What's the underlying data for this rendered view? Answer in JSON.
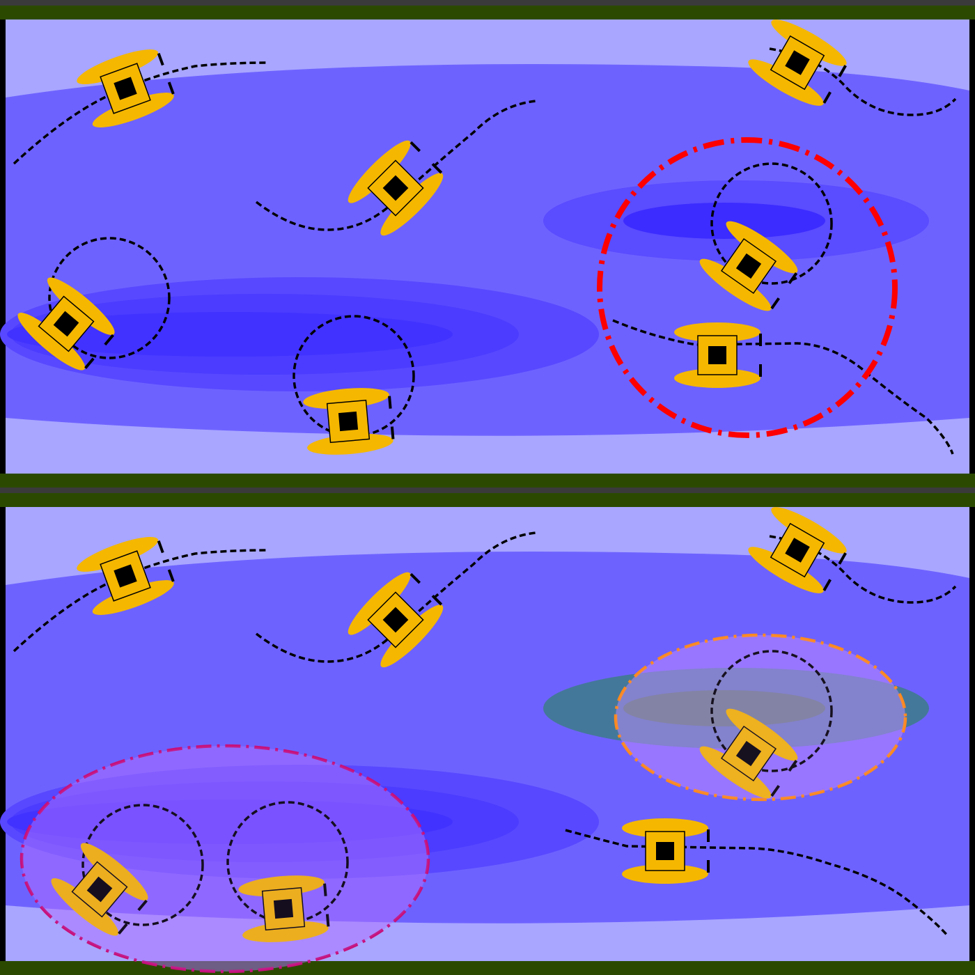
{
  "colors": {
    "background": "#000000",
    "bank_dark": "#3a3a3a",
    "bank_green": "#2b4a00",
    "water_light": "#a8a6ff",
    "water_mid": "#6e62ff",
    "water_deep": "#4b3dff",
    "water_deeper": "#3c2cff",
    "boat_body": "#f5b700",
    "boat_core": "#000000",
    "path": "#000000",
    "alert_red": "#ff0000",
    "cluster_orange": "#ff8a1a",
    "cluster_magenta": "#c7107a",
    "cluster_green_fill": "#3f7a3a",
    "cluster_purple_fill": "#c08cff"
  },
  "panels": [
    {
      "name": "top-panel",
      "boats": [
        {
          "id": "boat-top-left",
          "heading": -20,
          "trajectory": "curved"
        },
        {
          "id": "boat-mid-left",
          "heading": -45,
          "trajectory": "curved"
        },
        {
          "id": "boat-top-right",
          "heading": 30,
          "trajectory": "curved"
        },
        {
          "id": "boat-left-circling",
          "heading": 40,
          "trajectory": "circling"
        },
        {
          "id": "boat-center-circling",
          "heading": -5,
          "trajectory": "circling"
        },
        {
          "id": "boat-right-circling",
          "heading": 35,
          "trajectory": "circling"
        },
        {
          "id": "boat-right-straight",
          "heading": 0,
          "trajectory": "curved"
        }
      ],
      "alert_zones": [
        {
          "id": "red-alert-circle",
          "style": "dash-dot",
          "color_key": "alert_red"
        }
      ]
    },
    {
      "name": "bottom-panel",
      "boats": [
        {
          "id": "boat-top-left",
          "heading": -20,
          "trajectory": "curved"
        },
        {
          "id": "boat-mid-left",
          "heading": -45,
          "trajectory": "curved"
        },
        {
          "id": "boat-top-right",
          "heading": 30,
          "trajectory": "curved"
        },
        {
          "id": "boat-left-circling-a",
          "heading": 40,
          "trajectory": "circling"
        },
        {
          "id": "boat-left-circling-b",
          "heading": -5,
          "trajectory": "circling"
        },
        {
          "id": "boat-right-circling",
          "heading": 35,
          "trajectory": "circling"
        },
        {
          "id": "boat-right-straight",
          "heading": 0,
          "trajectory": "curved"
        }
      ],
      "alert_zones": [
        {
          "id": "orange-cluster-ellipse",
          "style": "dash-dot",
          "color_key": "cluster_orange"
        },
        {
          "id": "magenta-cluster-ellipse",
          "style": "dash-dot",
          "color_key": "cluster_magenta"
        }
      ]
    }
  ]
}
